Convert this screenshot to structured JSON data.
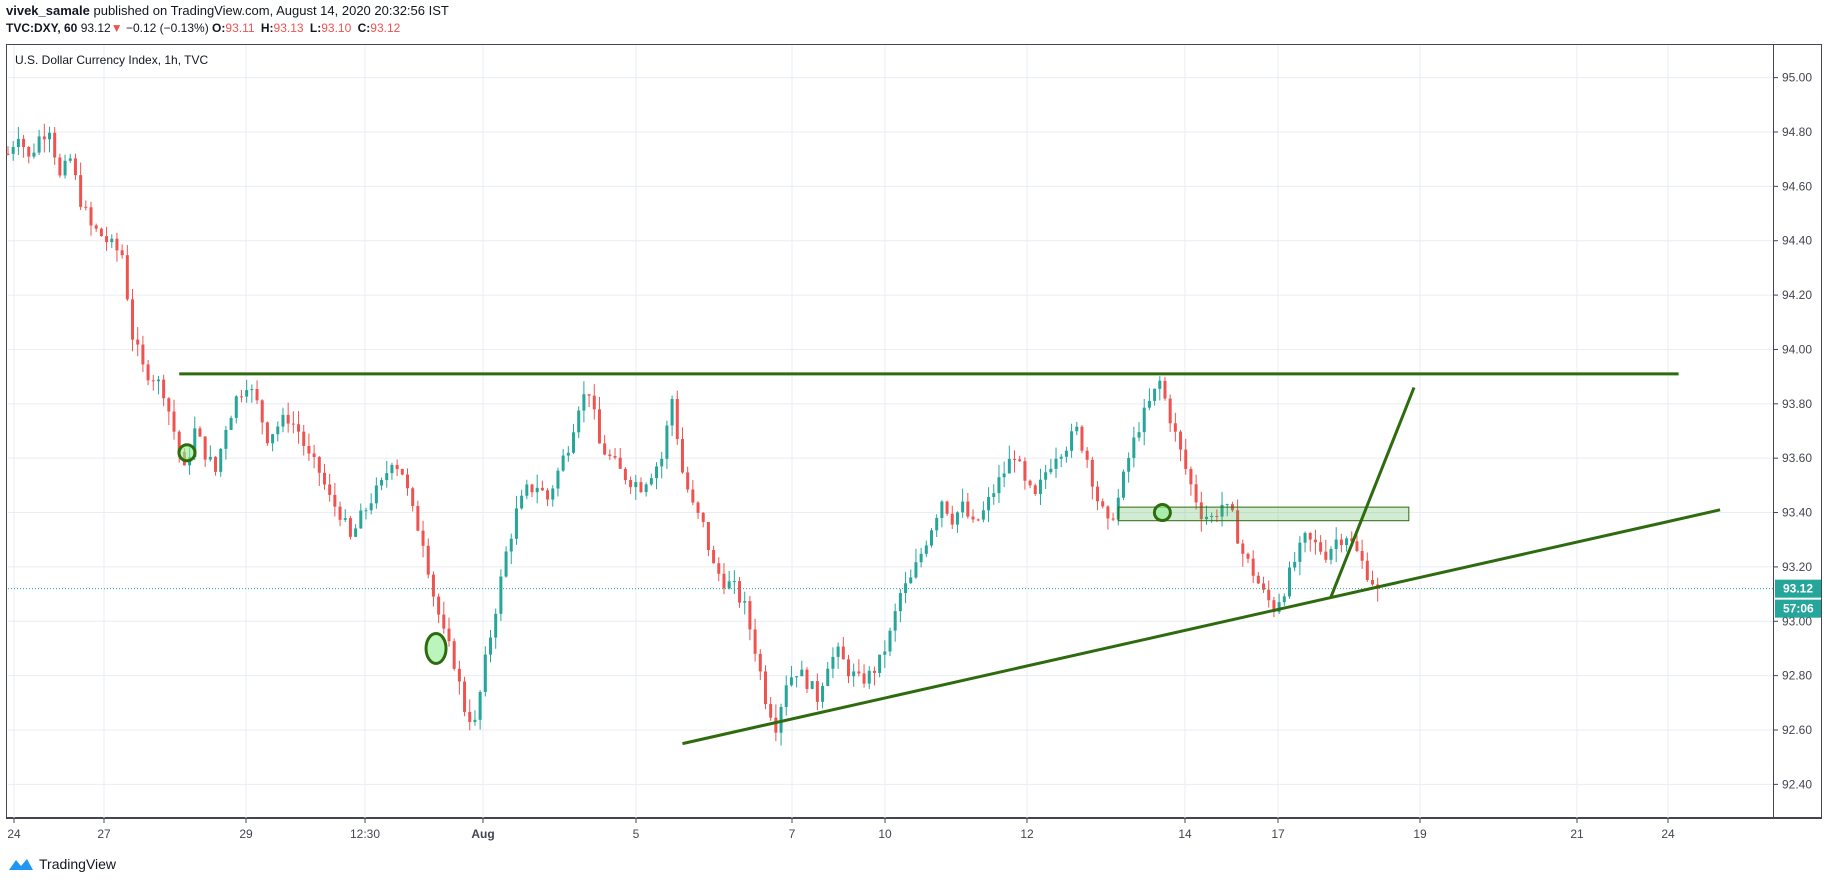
{
  "header": {
    "author": "vivek_samale",
    "published": "published on TradingView.com, August 14, 2020 20:32:56 IST",
    "symbol": "TVC:DXY, 60",
    "last": "93.12",
    "change_arrow": "▼",
    "change": "−0.12 (−0.13%)",
    "ohlc": [
      {
        "k": "O:",
        "v": "93.11"
      },
      {
        "k": "H:",
        "v": "93.13"
      },
      {
        "k": "L:",
        "v": "93.10"
      },
      {
        "k": "C:",
        "v": "93.12"
      }
    ]
  },
  "footer": {
    "brand": "TradingView",
    "logo_icon": "tradingview-logo-icon"
  },
  "chart_data": {
    "type": "candlestick",
    "title": "U.S. Dollar Currency Index, 1h, TVC",
    "ylim": [
      92.28,
      95.12
    ],
    "y_ticks": [
      "95.00",
      "94.80",
      "94.60",
      "94.40",
      "94.20",
      "94.00",
      "93.80",
      "93.60",
      "93.40",
      "93.20",
      "93.00",
      "92.80",
      "92.60",
      "92.40"
    ],
    "x_ticks": [
      "24",
      "27",
      "29",
      "12:30",
      "Aug",
      "5",
      "7",
      "10",
      "12",
      "14",
      "17",
      "19",
      "21",
      "24"
    ],
    "last_price_label": "93.12",
    "countdown_label": "57:06",
    "last_price": 93.12,
    "colors": {
      "up": "#26a69a",
      "down": "#ef5350",
      "drawing": "#2e6b0e",
      "price_line": "#26a69a",
      "grid": "#e8eef4"
    },
    "price_path": [
      [
        0,
        94.72
      ],
      [
        2,
        94.8
      ],
      [
        4,
        94.7
      ],
      [
        6,
        94.78
      ],
      [
        8,
        94.82
      ],
      [
        10,
        94.63
      ],
      [
        12,
        94.7
      ],
      [
        14,
        94.55
      ],
      [
        16,
        94.45
      ],
      [
        18,
        94.42
      ],
      [
        20,
        94.38
      ],
      [
        22,
        94.35
      ],
      [
        24,
        94.05
      ],
      [
        26,
        93.93
      ],
      [
        28,
        93.9
      ],
      [
        30,
        93.85
      ],
      [
        32,
        93.7
      ],
      [
        34,
        93.55
      ],
      [
        36,
        93.7
      ],
      [
        38,
        93.62
      ],
      [
        40,
        93.55
      ],
      [
        42,
        93.72
      ],
      [
        44,
        93.82
      ],
      [
        46,
        93.88
      ],
      [
        48,
        93.8
      ],
      [
        50,
        93.68
      ],
      [
        52,
        93.72
      ],
      [
        54,
        93.75
      ],
      [
        56,
        93.7
      ],
      [
        58,
        93.6
      ],
      [
        60,
        93.55
      ],
      [
        62,
        93.45
      ],
      [
        64,
        93.4
      ],
      [
        66,
        93.3
      ],
      [
        68,
        93.38
      ],
      [
        70,
        93.45
      ],
      [
        72,
        93.5
      ],
      [
        74,
        93.6
      ],
      [
        76,
        93.55
      ],
      [
        78,
        93.4
      ],
      [
        80,
        93.3
      ],
      [
        82,
        93.1
      ],
      [
        84,
        92.95
      ],
      [
        86,
        92.85
      ],
      [
        88,
        92.68
      ],
      [
        90,
        92.62
      ],
      [
        92,
        92.85
      ],
      [
        94,
        93.05
      ],
      [
        96,
        93.25
      ],
      [
        98,
        93.4
      ],
      [
        100,
        93.48
      ],
      [
        102,
        93.5
      ],
      [
        104,
        93.45
      ],
      [
        106,
        93.55
      ],
      [
        108,
        93.65
      ],
      [
        110,
        93.8
      ],
      [
        112,
        93.85
      ],
      [
        114,
        93.65
      ],
      [
        116,
        93.6
      ],
      [
        118,
        93.55
      ],
      [
        120,
        93.52
      ],
      [
        122,
        93.5
      ],
      [
        124,
        93.55
      ],
      [
        126,
        93.6
      ],
      [
        128,
        93.82
      ],
      [
        130,
        93.55
      ],
      [
        132,
        93.42
      ],
      [
        134,
        93.35
      ],
      [
        136,
        93.2
      ],
      [
        138,
        93.15
      ],
      [
        140,
        93.12
      ],
      [
        142,
        93.05
      ],
      [
        144,
        92.9
      ],
      [
        146,
        92.72
      ],
      [
        148,
        92.62
      ],
      [
        150,
        92.78
      ],
      [
        152,
        92.82
      ],
      [
        154,
        92.78
      ],
      [
        156,
        92.72
      ],
      [
        158,
        92.85
      ],
      [
        160,
        92.88
      ],
      [
        162,
        92.82
      ],
      [
        164,
        92.78
      ],
      [
        166,
        92.8
      ],
      [
        168,
        92.85
      ],
      [
        170,
        92.95
      ],
      [
        172,
        93.1
      ],
      [
        174,
        93.15
      ],
      [
        176,
        93.25
      ],
      [
        178,
        93.35
      ],
      [
        180,
        93.45
      ],
      [
        182,
        93.38
      ],
      [
        184,
        93.42
      ],
      [
        186,
        93.35
      ],
      [
        188,
        93.4
      ],
      [
        190,
        93.48
      ],
      [
        192,
        93.55
      ],
      [
        194,
        93.62
      ],
      [
        196,
        93.5
      ],
      [
        198,
        93.45
      ],
      [
        200,
        93.55
      ],
      [
        202,
        93.62
      ],
      [
        204,
        93.65
      ],
      [
        206,
        93.7
      ],
      [
        208,
        93.6
      ],
      [
        210,
        93.45
      ],
      [
        212,
        93.35
      ],
      [
        214,
        93.45
      ],
      [
        216,
        93.6
      ],
      [
        218,
        93.72
      ],
      [
        220,
        93.8
      ],
      [
        222,
        93.88
      ],
      [
        224,
        93.75
      ],
      [
        226,
        93.62
      ],
      [
        228,
        93.5
      ],
      [
        230,
        93.4
      ],
      [
        232,
        93.38
      ],
      [
        234,
        93.43
      ],
      [
        236,
        93.38
      ],
      [
        238,
        93.25
      ],
      [
        240,
        93.18
      ],
      [
        242,
        93.1
      ],
      [
        244,
        93.05
      ],
      [
        246,
        93.12
      ],
      [
        248,
        93.22
      ],
      [
        250,
        93.3
      ],
      [
        252,
        93.28
      ],
      [
        254,
        93.25
      ],
      [
        256,
        93.3
      ],
      [
        258,
        93.32
      ],
      [
        260,
        93.25
      ],
      [
        262,
        93.18
      ],
      [
        264,
        93.12
      ]
    ],
    "annotations": {
      "resistance_line": {
        "x": [
          33,
          322
        ],
        "y": [
          93.91,
          93.91
        ]
      },
      "support_line": {
        "x": [
          130,
          330
        ],
        "y": [
          92.55,
          93.41
        ]
      },
      "projection_line": {
        "x": [
          255,
          271
        ],
        "y": [
          93.09,
          93.86
        ]
      },
      "zone": {
        "x": [
          214,
          270
        ],
        "y": [
          93.37,
          93.42
        ]
      },
      "markers": [
        {
          "x": 34.5,
          "y": 93.62,
          "size": "small"
        },
        {
          "x": 82.5,
          "y": 92.9,
          "size": "large"
        },
        {
          "x": 222.5,
          "y": 93.4,
          "size": "small"
        }
      ]
    }
  }
}
